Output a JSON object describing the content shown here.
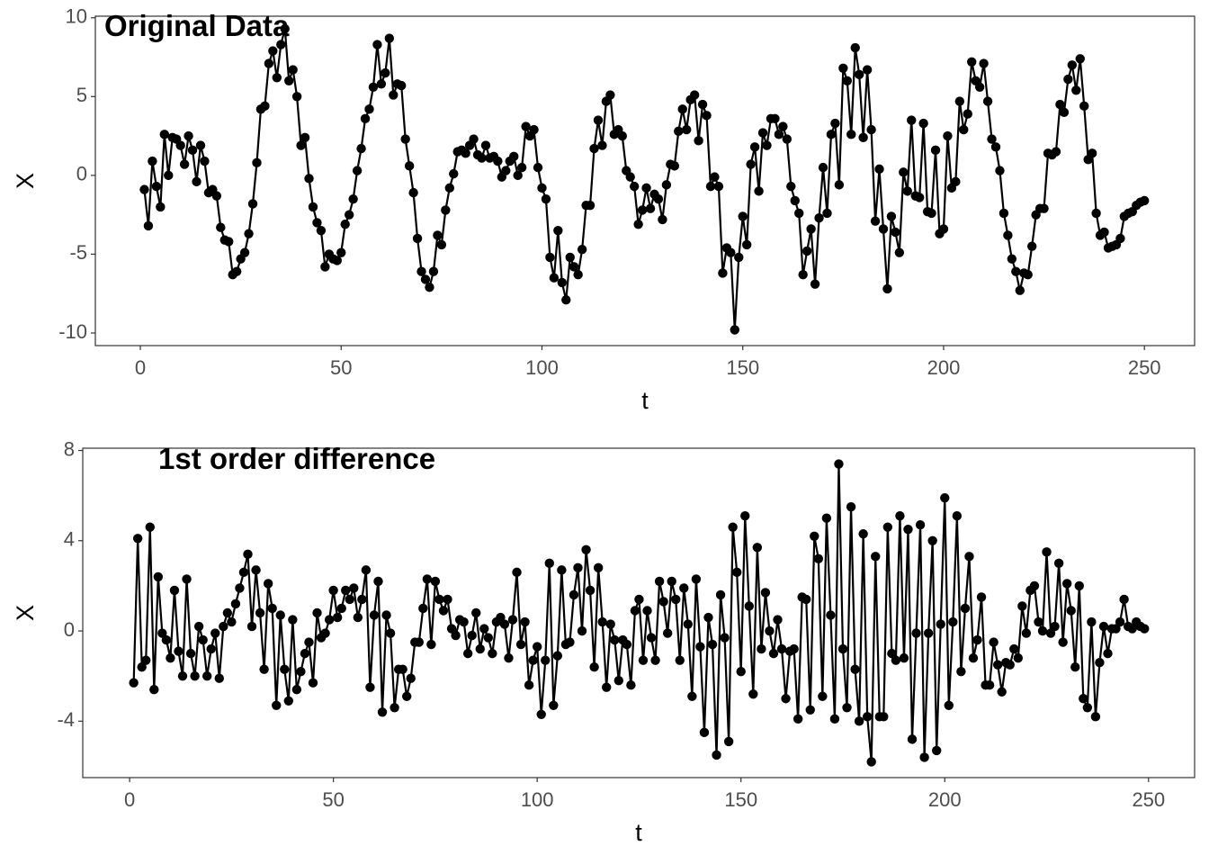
{
  "chart_data": [
    {
      "type": "line",
      "title": "Original Data",
      "xlabel": "t",
      "ylabel": "X",
      "color": "#000000",
      "markers": true,
      "xlim": [
        -11.2,
        262.5
      ],
      "ylim": [
        -10.8,
        10.1
      ],
      "xticks": [
        0,
        50,
        100,
        150,
        200,
        250
      ],
      "yticks": [
        -10,
        -5,
        0,
        5,
        10
      ],
      "x": [
        1,
        2,
        3,
        4,
        5,
        6,
        7,
        8,
        9,
        10,
        11,
        12,
        13,
        14,
        15,
        16,
        17,
        18,
        19,
        20,
        21,
        22,
        23,
        24,
        25,
        26,
        27,
        28,
        29,
        30,
        31,
        32,
        33,
        34,
        35,
        36,
        37,
        38,
        39,
        40,
        41,
        42,
        43,
        44,
        45,
        46,
        47,
        48,
        49,
        50,
        51,
        52,
        53,
        54,
        55,
        56,
        57,
        58,
        59,
        60,
        61,
        62,
        63,
        64,
        65,
        66,
        67,
        68,
        69,
        70,
        71,
        72,
        73,
        74,
        75,
        76,
        77,
        78,
        79,
        80,
        81,
        82,
        83,
        84,
        85,
        86,
        87,
        88,
        89,
        90,
        91,
        92,
        93,
        94,
        95,
        96,
        97,
        98,
        99,
        100,
        101,
        102,
        103,
        104,
        105,
        106,
        107,
        108,
        109,
        110,
        111,
        112,
        113,
        114,
        115,
        116,
        117,
        118,
        119,
        120,
        121,
        122,
        123,
        124,
        125,
        126,
        127,
        128,
        129,
        130,
        131,
        132,
        133,
        134,
        135,
        136,
        137,
        138,
        139,
        140,
        141,
        142,
        143,
        144,
        145,
        146,
        147,
        148,
        149,
        150,
        151,
        152,
        153,
        154,
        155,
        156,
        157,
        158,
        159,
        160,
        161,
        162,
        163,
        164,
        165,
        166,
        167,
        168,
        169,
        170,
        171,
        172,
        173,
        174,
        175,
        176,
        177,
        178,
        179,
        180,
        181,
        182,
        183,
        184,
        185,
        186,
        187,
        188,
        189,
        190,
        191,
        192,
        193,
        194,
        195,
        196,
        197,
        198,
        199,
        200,
        201,
        202,
        203,
        204,
        205,
        206,
        207,
        208,
        209,
        210,
        211,
        212,
        213,
        214,
        215,
        216,
        217,
        218,
        219,
        220,
        221,
        222,
        223,
        224,
        225,
        226,
        227,
        228,
        229,
        230,
        231,
        232,
        233,
        234,
        235,
        236,
        237,
        238,
        239,
        240,
        241,
        242,
        243,
        244,
        245,
        246,
        247,
        248,
        249,
        250
      ],
      "values": [
        -0.9,
        -3.2,
        0.9,
        -0.7,
        -2.0,
        2.6,
        0.0,
        2.4,
        2.3,
        1.9,
        0.7,
        2.5,
        1.6,
        -0.4,
        1.9,
        0.9,
        -1.1,
        -0.9,
        -1.3,
        -3.3,
        -4.1,
        -4.2,
        -6.3,
        -6.1,
        -5.3,
        -4.9,
        -3.7,
        -1.8,
        0.8,
        4.2,
        4.4,
        7.1,
        7.9,
        6.2,
        8.3,
        9.3,
        6.0,
        6.7,
        5.0,
        1.9,
        2.4,
        -0.2,
        -2.0,
        -3.0,
        -3.5,
        -5.8,
        -5.0,
        -5.3,
        -5.4,
        -4.9,
        -3.1,
        -2.5,
        -1.5,
        0.3,
        1.7,
        3.6,
        4.2,
        5.6,
        8.3,
        5.8,
        6.5,
        8.7,
        5.1,
        5.8,
        5.7,
        2.3,
        0.6,
        -1.1,
        -4.0,
        -6.1,
        -6.6,
        -7.1,
        -6.1,
        -3.8,
        -4.4,
        -2.2,
        -0.8,
        0.1,
        1.5,
        1.6,
        1.4,
        1.9,
        2.3,
        1.3,
        1.1,
        1.9,
        1.1,
        1.2,
        0.9,
        -0.1,
        0.3,
        0.9,
        1.2,
        0.0,
        0.5,
        3.1,
        2.5,
        2.9,
        0.5,
        -0.8,
        -1.5,
        -5.2,
        -6.5,
        -3.5,
        -6.8,
        -7.9,
        -5.2,
        -5.8,
        -6.3,
        -4.7,
        -1.9,
        -1.9,
        1.7,
        3.5,
        1.9,
        4.7,
        5.1,
        2.6,
        2.9,
        2.5,
        0.3,
        -0.1,
        -0.7,
        -3.1,
        -2.2,
        -0.8,
        -2.1,
        -1.2,
        -1.5,
        -2.8,
        -0.6,
        0.7,
        0.6,
        2.8,
        4.2,
        2.9,
        4.8,
        5.1,
        2.2,
        4.5,
        3.8,
        -0.7,
        -0.1,
        -0.7,
        -6.2,
        -4.6,
        -4.9,
        -9.8,
        -5.2,
        -2.6,
        -4.4,
        0.7,
        1.8,
        -1.0,
        2.7,
        1.9,
        3.6,
        3.6,
        2.6,
        3.1,
        2.3,
        -0.7,
        -1.6,
        -2.4,
        -6.3,
        -4.8,
        -3.4,
        -6.9,
        -2.7,
        0.5,
        -2.4,
        2.6,
        3.3,
        -0.6,
        6.8,
        6.0,
        2.6,
        8.1,
        6.4,
        2.4,
        6.7,
        2.9,
        -2.9,
        0.4,
        -3.4,
        -7.2,
        -2.6,
        -3.6,
        -4.9,
        0.2,
        -1.0,
        3.5,
        -1.3,
        -1.4,
        3.3,
        -2.3,
        -2.4,
        1.6,
        -3.7,
        -3.4,
        2.5,
        -0.8,
        -0.4,
        4.7,
        2.9,
        3.9,
        7.2,
        6.0,
        5.6,
        7.1,
        4.7,
        2.3,
        1.8,
        0.3,
        -2.4,
        -3.8,
        -5.3,
        -6.1,
        -7.3,
        -6.2,
        -6.3,
        -4.5,
        -2.5,
        -2.1,
        -2.1,
        1.4,
        1.3,
        1.5,
        4.5,
        4.0,
        6.1,
        7.0,
        5.4,
        7.4,
        4.4,
        1.0,
        1.4,
        -2.4,
        -3.8,
        -3.6,
        -4.6,
        -4.5,
        -4.4,
        -4.0,
        -2.6,
        -2.4,
        -2.3,
        -1.9,
        -1.7,
        -1.6
      ]
    },
    {
      "type": "line",
      "title": "1st order difference",
      "xlabel": "t",
      "ylabel": "X",
      "color": "#000000",
      "markers": true,
      "xlim": [
        -11.5,
        261.3
      ],
      "ylim": [
        -6.5,
        8.1
      ],
      "xticks": [
        0,
        50,
        100,
        150,
        200,
        250
      ],
      "yticks": [
        -4,
        0,
        4,
        8
      ],
      "x": [
        1,
        2,
        3,
        4,
        5,
        6,
        7,
        8,
        9,
        10,
        11,
        12,
        13,
        14,
        15,
        16,
        17,
        18,
        19,
        20,
        21,
        22,
        23,
        24,
        25,
        26,
        27,
        28,
        29,
        30,
        31,
        32,
        33,
        34,
        35,
        36,
        37,
        38,
        39,
        40,
        41,
        42,
        43,
        44,
        45,
        46,
        47,
        48,
        49,
        50,
        51,
        52,
        53,
        54,
        55,
        56,
        57,
        58,
        59,
        60,
        61,
        62,
        63,
        64,
        65,
        66,
        67,
        68,
        69,
        70,
        71,
        72,
        73,
        74,
        75,
        76,
        77,
        78,
        79,
        80,
        81,
        82,
        83,
        84,
        85,
        86,
        87,
        88,
        89,
        90,
        91,
        92,
        93,
        94,
        95,
        96,
        97,
        98,
        99,
        100,
        101,
        102,
        103,
        104,
        105,
        106,
        107,
        108,
        109,
        110,
        111,
        112,
        113,
        114,
        115,
        116,
        117,
        118,
        119,
        120,
        121,
        122,
        123,
        124,
        125,
        126,
        127,
        128,
        129,
        130,
        131,
        132,
        133,
        134,
        135,
        136,
        137,
        138,
        139,
        140,
        141,
        142,
        143,
        144,
        145,
        146,
        147,
        148,
        149,
        150,
        151,
        152,
        153,
        154,
        155,
        156,
        157,
        158,
        159,
        160,
        161,
        162,
        163,
        164,
        165,
        166,
        167,
        168,
        169,
        170,
        171,
        172,
        173,
        174,
        175,
        176,
        177,
        178,
        179,
        180,
        181,
        182,
        183,
        184,
        185,
        186,
        187,
        188,
        189,
        190,
        191,
        192,
        193,
        194,
        195,
        196,
        197,
        198,
        199,
        200,
        201,
        202,
        203,
        204,
        205,
        206,
        207,
        208,
        209,
        210,
        211,
        212,
        213,
        214,
        215,
        216,
        217,
        218,
        219,
        220,
        221,
        222,
        223,
        224,
        225,
        226,
        227,
        228,
        229,
        230,
        231,
        232,
        233,
        234,
        235,
        236,
        237,
        238,
        239,
        240,
        241,
        242,
        243,
        244,
        245,
        246,
        247,
        248,
        249
      ],
      "values": [
        -2.3,
        4.1,
        -1.6,
        -1.3,
        4.6,
        -2.6,
        2.4,
        -0.1,
        -0.4,
        -1.2,
        1.8,
        -0.9,
        -2.0,
        2.3,
        -1.0,
        -2.0,
        0.2,
        -0.4,
        -2.0,
        -0.8,
        -0.1,
        -2.1,
        0.2,
        0.8,
        0.4,
        1.2,
        1.9,
        2.6,
        3.4,
        0.2,
        2.7,
        0.8,
        -1.7,
        2.1,
        1.0,
        -3.3,
        0.7,
        -1.7,
        -3.1,
        0.5,
        -2.6,
        -1.8,
        -1.0,
        -0.5,
        -2.3,
        0.8,
        -0.3,
        -0.1,
        0.5,
        1.8,
        0.6,
        1.0,
        1.8,
        1.4,
        1.9,
        0.6,
        1.4,
        2.7,
        -2.5,
        0.7,
        2.2,
        -3.6,
        0.7,
        -0.1,
        -3.4,
        -1.7,
        -1.7,
        -2.9,
        -2.1,
        -0.5,
        -0.5,
        1.0,
        2.3,
        -0.6,
        2.2,
        1.4,
        0.9,
        1.4,
        0.1,
        -0.2,
        0.5,
        0.4,
        -1.0,
        -0.2,
        0.8,
        -0.8,
        0.1,
        -0.3,
        -1.0,
        0.4,
        0.6,
        0.3,
        -1.2,
        0.5,
        2.6,
        -0.6,
        0.4,
        -2.4,
        -1.3,
        -0.7,
        -3.7,
        -1.3,
        3.0,
        -3.3,
        -1.1,
        2.7,
        -0.6,
        -0.5,
        1.6,
        2.8,
        0.0,
        3.6,
        1.8,
        -1.6,
        2.8,
        0.4,
        -2.5,
        0.3,
        -0.4,
        -2.2,
        -0.4,
        -0.6,
        -2.4,
        0.9,
        1.4,
        -1.3,
        0.9,
        -0.3,
        -1.3,
        2.2,
        1.3,
        -0.1,
        2.2,
        1.4,
        -1.3,
        1.9,
        0.3,
        -2.9,
        2.3,
        -0.7,
        -4.5,
        0.6,
        -0.6,
        -5.5,
        1.6,
        -0.3,
        -4.9,
        4.6,
        2.6,
        -1.8,
        5.1,
        1.1,
        -2.8,
        3.7,
        -0.8,
        1.7,
        0.0,
        -1.0,
        0.5,
        -0.8,
        -3.0,
        -0.9,
        -0.8,
        -3.9,
        1.5,
        1.4,
        -3.5,
        4.2,
        3.2,
        -2.9,
        5.0,
        0.7,
        -3.9,
        7.4,
        -0.8,
        -3.4,
        5.5,
        -1.7,
        -4.0,
        4.3,
        -3.8,
        -5.8,
        3.3,
        -3.8,
        -3.8,
        4.6,
        -1.0,
        -1.3,
        5.1,
        -1.2,
        4.5,
        -4.8,
        -0.1,
        4.7,
        -5.6,
        -0.1,
        4.0,
        -5.3,
        0.3,
        5.9,
        -3.3,
        0.4,
        5.1,
        -1.8,
        1.0,
        3.3,
        -1.2,
        -0.4,
        1.5,
        -2.4,
        -2.4,
        -0.5,
        -1.5,
        -2.7,
        -1.4,
        -1.5,
        -0.8,
        -1.2,
        1.1,
        -0.1,
        1.8,
        2.0,
        0.4,
        0.0,
        3.5,
        -0.1,
        0.2,
        3.0,
        -0.5,
        2.1,
        0.9,
        -1.6,
        2.0,
        -3.0,
        -3.4,
        0.4,
        -3.8,
        -1.4,
        0.2,
        -1.0,
        0.1,
        0.1,
        0.4,
        1.4,
        0.2,
        0.1,
        0.4,
        0.2,
        0.1
      ]
    }
  ]
}
